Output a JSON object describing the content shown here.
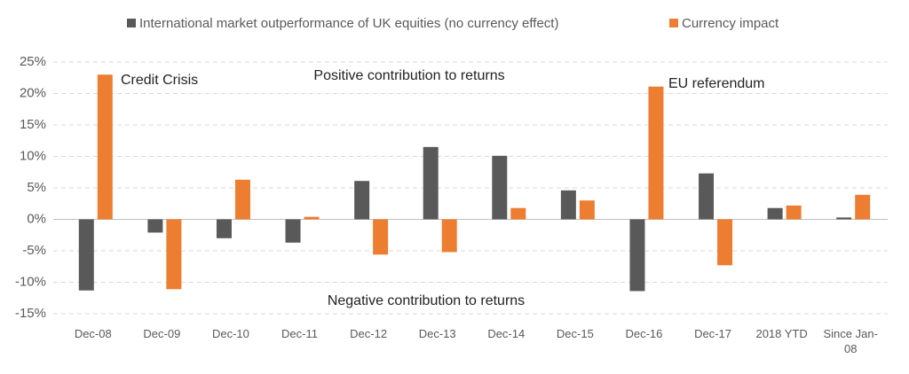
{
  "chart_data": {
    "type": "bar",
    "categories": [
      "Dec-08",
      "Dec-09",
      "Dec-10",
      "Dec-11",
      "Dec-12",
      "Dec-13",
      "Dec-14",
      "Dec-15",
      "Dec-16",
      "Dec-17",
      "2018 YTD",
      "Since Jan-08"
    ],
    "series": [
      {
        "name": "International market outperformance of UK equities (no currency effect)",
        "color": "#595959",
        "values": [
          -11.3,
          -2.1,
          -3.0,
          -3.7,
          6.1,
          11.5,
          10.1,
          4.6,
          -11.4,
          7.3,
          1.8,
          0.3
        ]
      },
      {
        "name": "Currency impact",
        "color": "#ed7d31",
        "values": [
          23.0,
          -11.1,
          6.3,
          0.4,
          -5.6,
          -5.2,
          1.8,
          3.0,
          21.1,
          -7.3,
          2.2,
          3.9
        ]
      }
    ],
    "ylim": [
      -15,
      25
    ],
    "yticks": [
      {
        "value": -15,
        "label": "-15%"
      },
      {
        "value": -10,
        "label": "-10%"
      },
      {
        "value": -5,
        "label": "-5%"
      },
      {
        "value": 0,
        "label": "0%"
      },
      {
        "value": 5,
        "label": "5%"
      },
      {
        "value": 10,
        "label": "10%"
      },
      {
        "value": 15,
        "label": "15%"
      },
      {
        "value": 20,
        "label": "20%"
      },
      {
        "value": 25,
        "label": "25%"
      }
    ],
    "grid": true,
    "legend": "top",
    "annotations": [
      "Credit Crisis",
      "Positive contribution to returns",
      "EU referendum",
      "Negative contribution to returns"
    ]
  }
}
